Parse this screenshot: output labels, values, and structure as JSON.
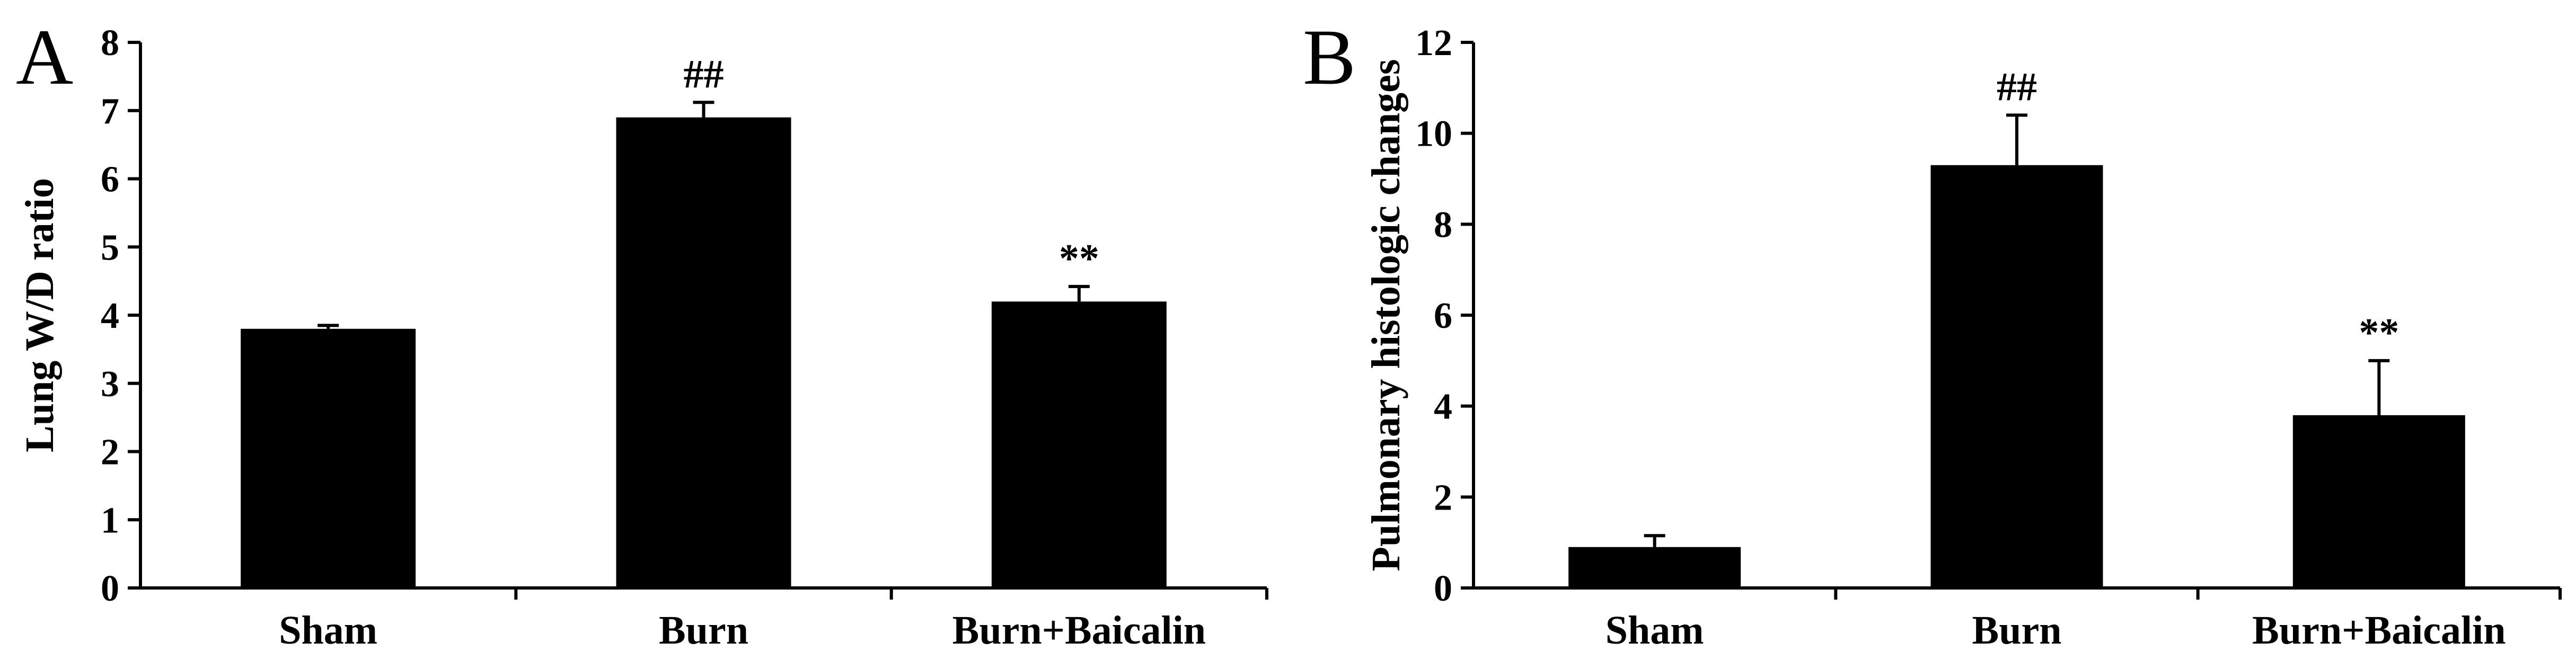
{
  "chart_data": [
    {
      "type": "bar",
      "panel": "A",
      "ylabel": "Lung W/D ratio",
      "xlabel": "",
      "categories": [
        "Sham",
        "Burn",
        "Burn+Baicalin"
      ],
      "values": [
        3.8,
        6.9,
        4.2
      ],
      "errors": [
        0.05,
        0.22,
        0.22
      ],
      "annotations": [
        "",
        "##",
        "**"
      ],
      "ylim": [
        0,
        8
      ],
      "yticks": [
        0,
        1,
        2,
        3,
        4,
        5,
        6,
        7,
        8
      ],
      "bar_color": "#000000",
      "grid": false
    },
    {
      "type": "bar",
      "panel": "B",
      "ylabel": "Pulmonary histologic changes",
      "xlabel": "",
      "categories": [
        "Sham",
        "Burn",
        "Burn+Baicalin"
      ],
      "values": [
        0.9,
        9.3,
        3.8
      ],
      "errors": [
        0.25,
        1.1,
        1.2
      ],
      "annotations": [
        "",
        "##",
        "**"
      ],
      "ylim": [
        0,
        12
      ],
      "yticks": [
        0,
        2,
        4,
        6,
        8,
        10,
        12
      ],
      "bar_color": "#000000",
      "grid": false
    }
  ]
}
